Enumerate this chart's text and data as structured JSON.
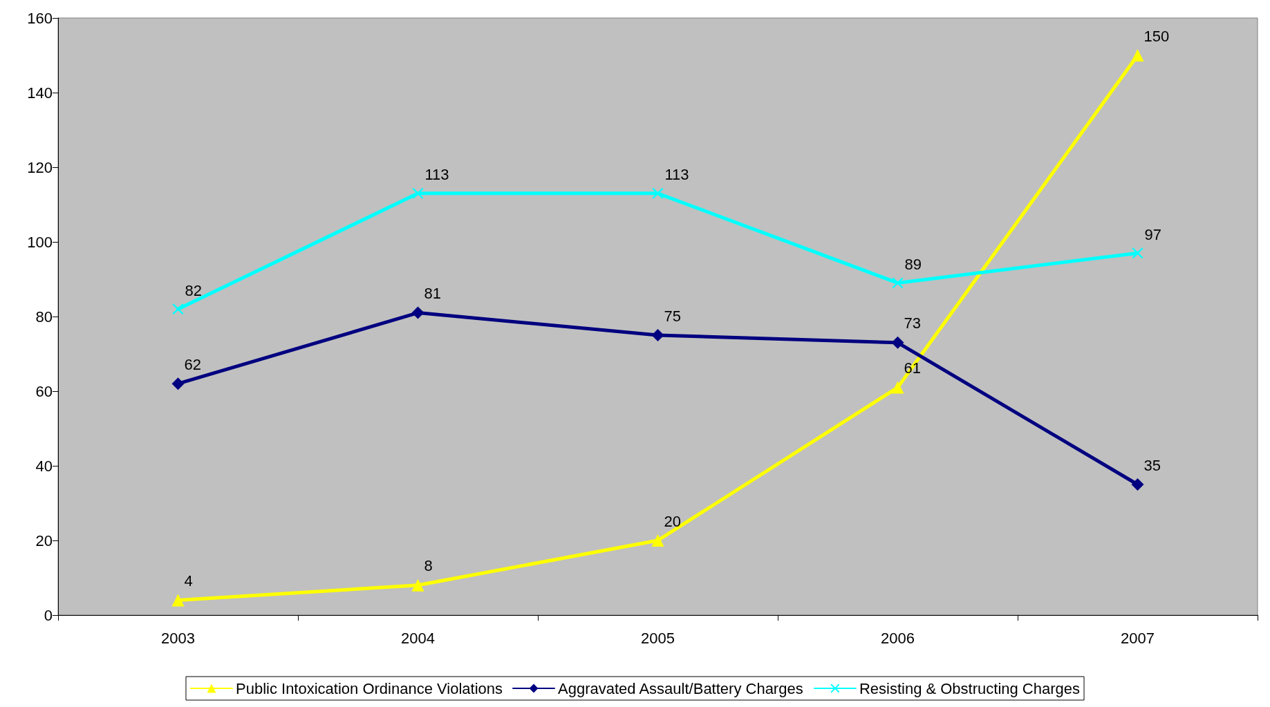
{
  "chart_data": {
    "type": "line",
    "categories": [
      "2003",
      "2004",
      "2005",
      "2006",
      "2007"
    ],
    "series": [
      {
        "name": "Public Intoxication Ordinance Violations",
        "color": "#ffff00",
        "marker": "triangle",
        "values": [
          4,
          8,
          20,
          61,
          150
        ]
      },
      {
        "name": "Aggravated Assault/Battery Charges",
        "color": "#000080",
        "marker": "diamond",
        "values": [
          62,
          81,
          75,
          73,
          35
        ]
      },
      {
        "name": "Resisting & Obstructing Charges",
        "color": "#00ffff",
        "marker": "cross",
        "values": [
          82,
          113,
          113,
          89,
          97
        ]
      }
    ],
    "ylim": [
      0,
      160
    ],
    "yticks": [
      0,
      20,
      40,
      60,
      80,
      100,
      120,
      140,
      160
    ],
    "data_labels": true,
    "grid": false,
    "legend": "bottom"
  }
}
